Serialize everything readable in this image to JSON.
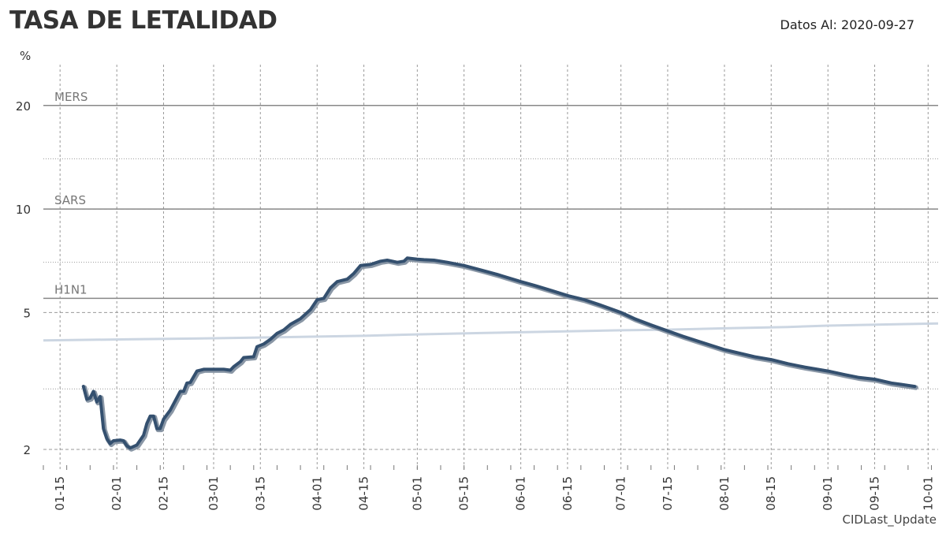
{
  "header": {
    "title": "TASA DE LETALIDAD",
    "date_note": "Datos Al: 2020-09-27",
    "y_unit": "%",
    "source": "CIDLast_Update"
  },
  "colors": {
    "main_line": "#34506f",
    "main_shadow": "#8a97a6",
    "secondary_line": "#ccd6e2",
    "reference_line": "#888888",
    "grid": "#999999"
  },
  "chart_data": {
    "type": "line",
    "title": "TASA DE LETALIDAD",
    "ylabel": "%",
    "y_scale": "log",
    "ylim": [
      1.8,
      28
    ],
    "xlim": [
      "2020-01-10",
      "2020-10-04"
    ],
    "grid": true,
    "y_ticks": [
      2,
      5,
      10,
      20
    ],
    "y_ticks_minor": [
      3,
      7,
      14
    ],
    "x_ticks": [
      {
        "date": "2020-01-15",
        "label": "01-15"
      },
      {
        "date": "2020-02-01",
        "label": "02-01"
      },
      {
        "date": "2020-02-15",
        "label": "02-15"
      },
      {
        "date": "2020-03-01",
        "label": "03-01"
      },
      {
        "date": "2020-03-15",
        "label": "03-15"
      },
      {
        "date": "2020-04-01",
        "label": "04-01"
      },
      {
        "date": "2020-04-15",
        "label": "04-15"
      },
      {
        "date": "2020-05-01",
        "label": "05-01"
      },
      {
        "date": "2020-05-15",
        "label": "05-15"
      },
      {
        "date": "2020-06-01",
        "label": "06-01"
      },
      {
        "date": "2020-06-15",
        "label": "06-15"
      },
      {
        "date": "2020-07-01",
        "label": "07-01"
      },
      {
        "date": "2020-07-15",
        "label": "07-15"
      },
      {
        "date": "2020-08-01",
        "label": "08-01"
      },
      {
        "date": "2020-08-15",
        "label": "08-15"
      },
      {
        "date": "2020-09-01",
        "label": "09-01"
      },
      {
        "date": "2020-09-15",
        "label": "09-15"
      },
      {
        "date": "2020-10-01",
        "label": "10-01"
      }
    ],
    "reference_lines": [
      {
        "label": "MERS",
        "value": 20
      },
      {
        "label": "SARS",
        "value": 10
      },
      {
        "label": "H1N1",
        "value": 5.5
      }
    ],
    "series": [
      {
        "style": "main",
        "points": [
          [
            "2020-01-22",
            3.05
          ],
          [
            "2020-01-23",
            2.8
          ],
          [
            "2020-01-24",
            2.82
          ],
          [
            "2020-01-25",
            2.95
          ],
          [
            "2020-01-26",
            2.75
          ],
          [
            "2020-01-27",
            2.85
          ],
          [
            "2020-01-28",
            2.3
          ],
          [
            "2020-01-29",
            2.15
          ],
          [
            "2020-01-30",
            2.08
          ],
          [
            "2020-01-31",
            2.12
          ],
          [
            "2020-02-02",
            2.13
          ],
          [
            "2020-02-03",
            2.12
          ],
          [
            "2020-02-04",
            2.05
          ],
          [
            "2020-02-05",
            2.02
          ],
          [
            "2020-02-07",
            2.06
          ],
          [
            "2020-02-09",
            2.2
          ],
          [
            "2020-02-10",
            2.38
          ],
          [
            "2020-02-11",
            2.5
          ],
          [
            "2020-02-12",
            2.5
          ],
          [
            "2020-02-13",
            2.3
          ],
          [
            "2020-02-14",
            2.3
          ],
          [
            "2020-02-15",
            2.45
          ],
          [
            "2020-02-17",
            2.6
          ],
          [
            "2020-02-20",
            2.95
          ],
          [
            "2020-02-21",
            2.95
          ],
          [
            "2020-02-22",
            3.12
          ],
          [
            "2020-02-23",
            3.13
          ],
          [
            "2020-02-25",
            3.38
          ],
          [
            "2020-02-27",
            3.42
          ],
          [
            "2020-03-01",
            3.42
          ],
          [
            "2020-03-04",
            3.42
          ],
          [
            "2020-03-06",
            3.4
          ],
          [
            "2020-03-07",
            3.48
          ],
          [
            "2020-03-09",
            3.6
          ],
          [
            "2020-03-10",
            3.7
          ],
          [
            "2020-03-13",
            3.72
          ],
          [
            "2020-03-14",
            3.98
          ],
          [
            "2020-03-16",
            4.05
          ],
          [
            "2020-03-18",
            4.18
          ],
          [
            "2020-03-20",
            4.35
          ],
          [
            "2020-03-22",
            4.45
          ],
          [
            "2020-03-24",
            4.62
          ],
          [
            "2020-03-27",
            4.8
          ],
          [
            "2020-03-30",
            5.1
          ],
          [
            "2020-04-01",
            5.45
          ],
          [
            "2020-04-03",
            5.5
          ],
          [
            "2020-04-05",
            5.9
          ],
          [
            "2020-04-07",
            6.15
          ],
          [
            "2020-04-10",
            6.25
          ],
          [
            "2020-04-12",
            6.5
          ],
          [
            "2020-04-14",
            6.85
          ],
          [
            "2020-04-17",
            6.9
          ],
          [
            "2020-04-20",
            7.05
          ],
          [
            "2020-04-22",
            7.1
          ],
          [
            "2020-04-25",
            7.0
          ],
          [
            "2020-04-27",
            7.05
          ],
          [
            "2020-04-28",
            7.2
          ],
          [
            "2020-05-01",
            7.15
          ],
          [
            "2020-05-03",
            7.12
          ],
          [
            "2020-05-06",
            7.1
          ],
          [
            "2020-05-10",
            7.0
          ],
          [
            "2020-05-15",
            6.85
          ],
          [
            "2020-05-20",
            6.65
          ],
          [
            "2020-05-25",
            6.45
          ],
          [
            "2020-06-01",
            6.15
          ],
          [
            "2020-06-05",
            6.0
          ],
          [
            "2020-06-10",
            5.8
          ],
          [
            "2020-06-15",
            5.6
          ],
          [
            "2020-06-20",
            5.45
          ],
          [
            "2020-06-25",
            5.25
          ],
          [
            "2020-07-01",
            5.0
          ],
          [
            "2020-07-05",
            4.8
          ],
          [
            "2020-07-10",
            4.6
          ],
          [
            "2020-07-15",
            4.42
          ],
          [
            "2020-07-20",
            4.25
          ],
          [
            "2020-07-25",
            4.1
          ],
          [
            "2020-08-01",
            3.9
          ],
          [
            "2020-08-06",
            3.8
          ],
          [
            "2020-08-10",
            3.72
          ],
          [
            "2020-08-15",
            3.65
          ],
          [
            "2020-08-20",
            3.55
          ],
          [
            "2020-08-25",
            3.47
          ],
          [
            "2020-09-01",
            3.38
          ],
          [
            "2020-09-06",
            3.3
          ],
          [
            "2020-09-10",
            3.24
          ],
          [
            "2020-09-15",
            3.2
          ],
          [
            "2020-09-20",
            3.12
          ],
          [
            "2020-09-25",
            3.07
          ],
          [
            "2020-09-27",
            3.05
          ]
        ]
      },
      {
        "style": "secondary",
        "points": [
          [
            "2020-01-10",
            4.15
          ],
          [
            "2020-02-04",
            4.18
          ],
          [
            "2020-03-01",
            4.21
          ],
          [
            "2020-03-20",
            4.24
          ],
          [
            "2020-04-15",
            4.28
          ],
          [
            "2020-05-01",
            4.32
          ],
          [
            "2020-05-20",
            4.36
          ],
          [
            "2020-06-10",
            4.4
          ],
          [
            "2020-07-01",
            4.44
          ],
          [
            "2020-07-15",
            4.46
          ],
          [
            "2020-08-01",
            4.5
          ],
          [
            "2020-08-20",
            4.54
          ],
          [
            "2020-09-01",
            4.58
          ],
          [
            "2020-09-20",
            4.62
          ],
          [
            "2020-10-04",
            4.65
          ]
        ]
      }
    ]
  }
}
